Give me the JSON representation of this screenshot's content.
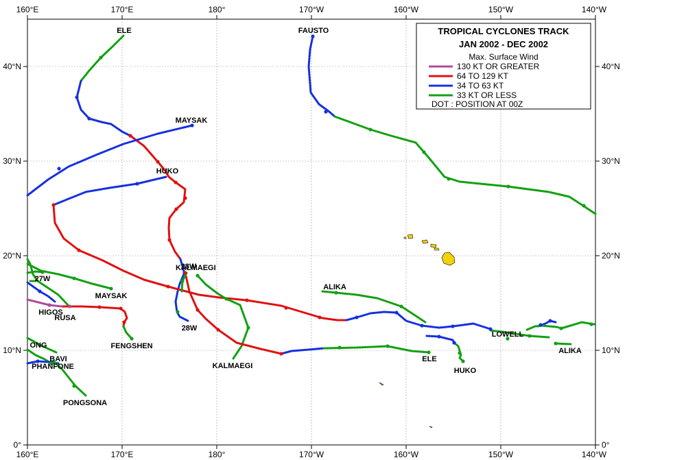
{
  "legend": {
    "title": "TROPICAL  CYCLONES  TRACK",
    "period": "JAN 2002  -  DEC 2002",
    "subtitle": "Max. Surface Wind",
    "items": [
      {
        "label": "130 KT OR GREATER",
        "color": "#b04a9a"
      },
      {
        "label": "64 TO 129 KT",
        "color": "#e01010"
      },
      {
        "label": "34 TO 63 KT",
        "color": "#1530e0"
      },
      {
        "label": "33 KT OR LESS",
        "color": "#12a012"
      }
    ],
    "dot_note": "DOT : POSITION AT 00Z"
  },
  "axes": {
    "lon_labels": [
      "160°E",
      "170°E",
      "180°",
      "170°W",
      "160°W",
      "150°W",
      "140°W"
    ],
    "lat_labels_left": [
      "0°",
      "10°N",
      "20°N",
      "30°N",
      "40°N"
    ],
    "lat_labels_right": [
      "0°",
      "10°N",
      "20°N",
      "30°N",
      "40°N"
    ]
  },
  "storm_labels": {
    "ele_n": "ELE",
    "fausto": "FAUSTO",
    "maysak_n": "MAYSAK",
    "huko_n": "HUKO",
    "alika_n": "ALIKA",
    "n28w_a": "28W",
    "kalmaegi_n": "KALMAEGI",
    "maysak_w": "MAYSAK",
    "higos": "HIGOS",
    "rusa": "RUSA",
    "n27w": "27W",
    "fengshen": "FENGSHEN",
    "n28w_b": "28W",
    "kalmaegi_s": "KALMAEGI",
    "ong": "ONG",
    "bavi": "BAVI",
    "phanfone": "PHANFONE",
    "pongsona": "PONGSONA",
    "ele_s": "ELE",
    "huko_s": "HUKO",
    "lowell": "LOWELL",
    "alika_s": "ALIKA"
  },
  "colors": {
    "super": "#b04a9a",
    "typhoon": "#e01010",
    "storm": "#1530e0",
    "depression": "#12a012",
    "land": "#f2d20a",
    "grid": "#9a9a9a"
  }
}
